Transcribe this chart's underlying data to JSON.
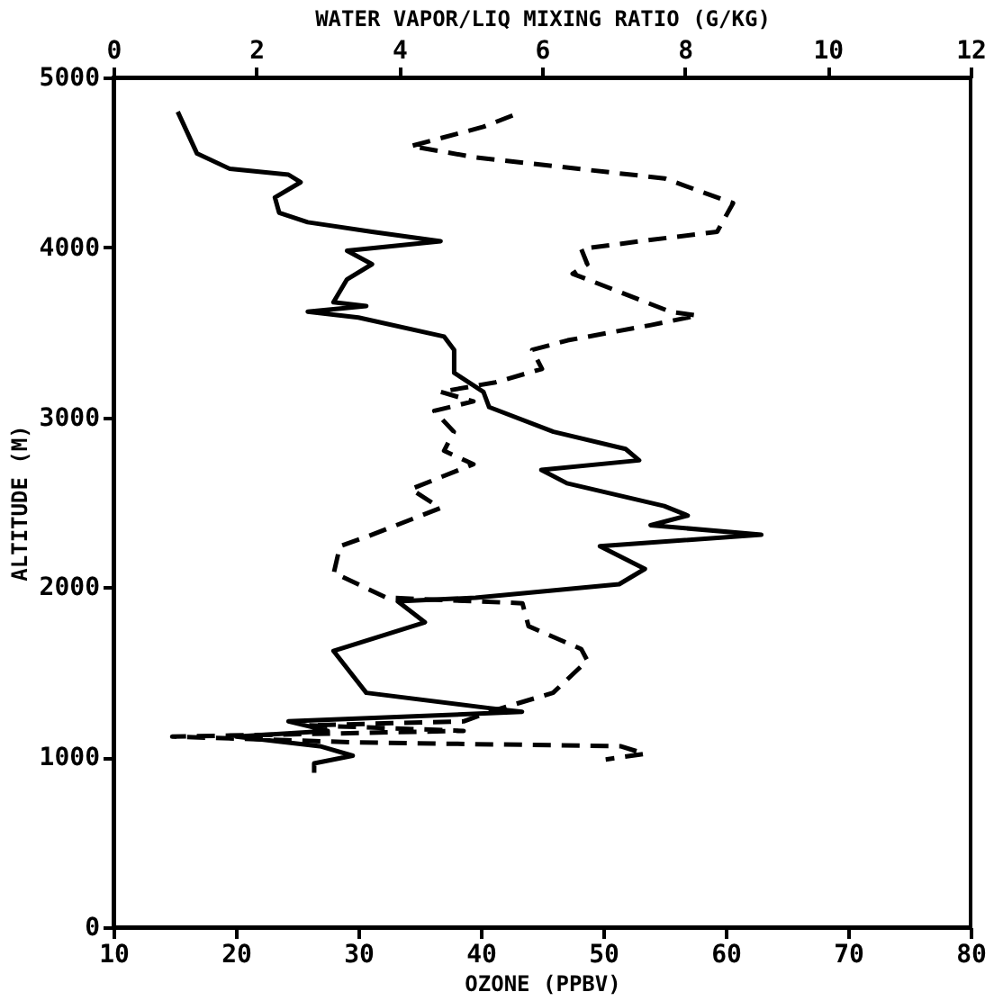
{
  "chart_data": {
    "type": "line",
    "xlabel": "OZONE (PPBV)",
    "x2label": "WATER VAPOR/LIQ MIXING RATIO (G/KG)",
    "ylabel": "ALTITUDE (M)",
    "xlim": [
      10,
      80
    ],
    "xticks": [
      10,
      20,
      30,
      40,
      50,
      60,
      70,
      80
    ],
    "x2lim": [
      0,
      12
    ],
    "x2ticks": [
      0,
      2,
      4,
      6,
      8,
      10,
      12
    ],
    "ylim": [
      0,
      5000
    ],
    "yticks": [
      0,
      1000,
      2000,
      3000,
      4000,
      5000
    ],
    "grid": false,
    "series": [
      {
        "axis": "x2",
        "color": "#000000",
        "line_style": "solid",
        "x": [
          0.9,
          1.17,
          1.63,
          2.45,
          2.62,
          2.26,
          2.32,
          2.72,
          3.62,
          4.58,
          3.27,
          3.62,
          3.27,
          3.08,
          3.54,
          2.72,
          3.43,
          4.63,
          4.77,
          4.77,
          5.18,
          5.26,
          6.16,
          7.17,
          7.36,
          5.99,
          6.35,
          7.71,
          8.04,
          7.52,
          9.07,
          6.81,
          7.44,
          7.08,
          5.07,
          3.98,
          4.36,
          3.08,
          3.54,
          5.26,
          5.72,
          2.45,
          3.0,
          1.72,
          2.89,
          3.35,
          2.81,
          2.81
        ],
        "values": [
          4798,
          4552,
          4462,
          4428,
          4383,
          4294,
          4204,
          4148,
          4092,
          4036,
          3980,
          3901,
          3812,
          3677,
          3655,
          3621,
          3587,
          3475,
          3397,
          3262,
          3150,
          3060,
          2915,
          2814,
          2747,
          2691,
          2612,
          2478,
          2422,
          2365,
          2309,
          2242,
          2108,
          2018,
          1939,
          1917,
          1794,
          1626,
          1379,
          1289,
          1267,
          1211,
          1155,
          1121,
          1065,
          1009,
          964,
          908
        ]
      },
      {
        "color": "#000000",
        "line_style": "dashed",
        "x": [
          42.6,
          40.2,
          34.3,
          39.6,
          55.0,
          60.6,
          59.3,
          53.0,
          48.2,
          48.7,
          47.5,
          55.5,
          57.7,
          53.9,
          47.1,
          44.2,
          45.0,
          41.2,
          36.7,
          39.4,
          36.2,
          37.8,
          37.0,
          39.4,
          34.3,
          36.7,
          30.7,
          28.5,
          28.0,
          32.3,
          43.4,
          43.9,
          48.2,
          48.7,
          45.9,
          40.7,
          38.6,
          25.9,
          38.6,
          14.8,
          30.0,
          51.4,
          53.4,
          50.2
        ],
        "values": [
          4776,
          4709,
          4596,
          4529,
          4406,
          4260,
          4092,
          4036,
          3991,
          3901,
          3845,
          3621,
          3599,
          3543,
          3453,
          3397,
          3285,
          3206,
          3150,
          3094,
          3038,
          2915,
          2803,
          2724,
          2578,
          2466,
          2298,
          2242,
          2085,
          1939,
          1906,
          1771,
          1637,
          1569,
          1379,
          1267,
          1211,
          1188,
          1155,
          1121,
          1087,
          1065,
          1020,
          987
        ]
      }
    ]
  }
}
